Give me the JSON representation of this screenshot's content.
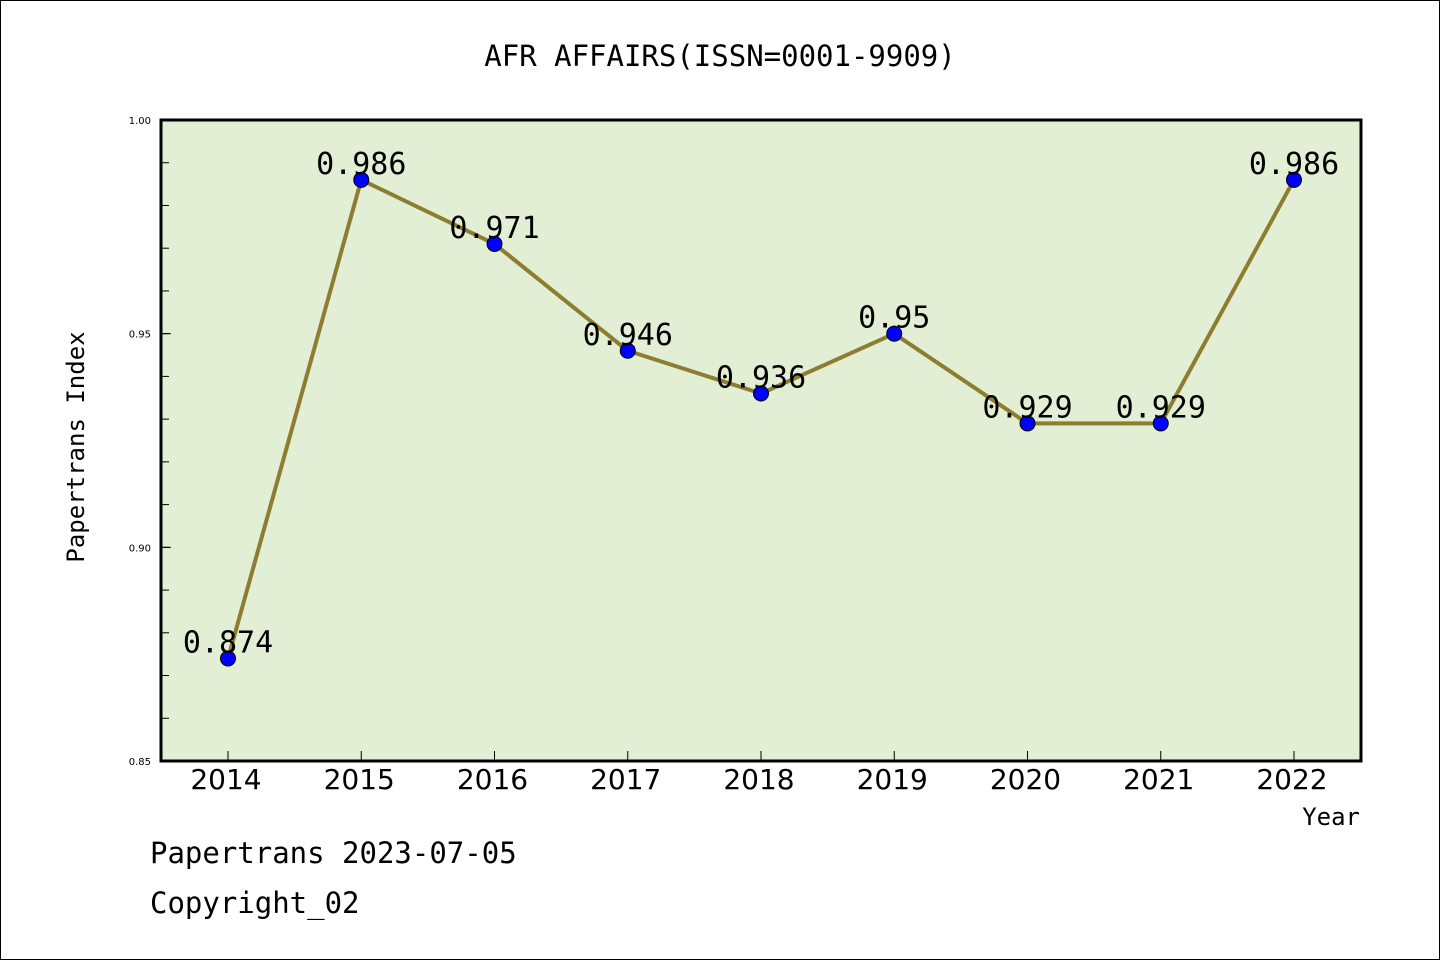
{
  "chart_data": {
    "type": "line",
    "title": "AFR AFFAIRS(ISSN=0001-9909)",
    "xlabel": "Year",
    "ylabel": "Papertrans Index",
    "x": [
      "2014",
      "2015",
      "2016",
      "2017",
      "2018",
      "2019",
      "2020",
      "2021",
      "2022"
    ],
    "series": [
      {
        "values": [
          0.874,
          0.986,
          0.971,
          0.946,
          0.936,
          0.95,
          0.929,
          0.929,
          0.986
        ],
        "labels": [
          "0.874",
          "0.986",
          "0.971",
          "0.946",
          "0.936",
          "0.95",
          "0.929",
          "0.929",
          "0.986"
        ]
      }
    ],
    "ylim": [
      0.85,
      1.0
    ],
    "yticks": [
      "0.85",
      "0.90",
      "0.95",
      "1.00"
    ],
    "grid": false,
    "colors": {
      "plot_bg": "#e2efd4",
      "line": "#8c7d30",
      "marker": "#0000ff"
    }
  },
  "footer": {
    "line1": "Papertrans 2023-07-05",
    "line2": "Copyright_02"
  }
}
